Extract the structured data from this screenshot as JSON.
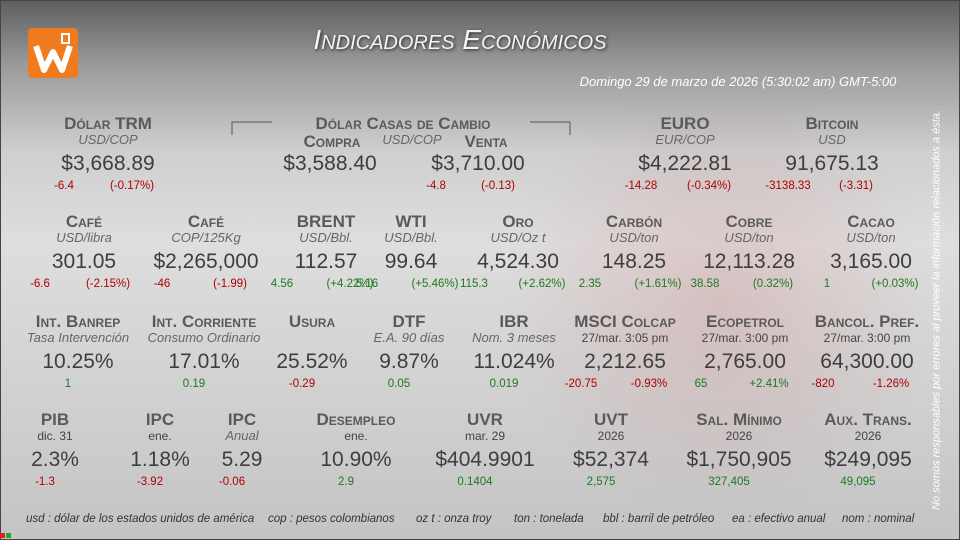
{
  "header": {
    "title": "Indicadores Económicos",
    "date": "Domingo 29 de marzo de 2026 (5:30:02 am) GMT-5:00"
  },
  "exchange": {
    "title": "Dólar Casas de Cambio",
    "buy_label": "Compra",
    "unit": "USD/COP",
    "sell_label": "Venta",
    "buy": "$3,588.40",
    "sell": "$3,710.00",
    "change": "-4.8",
    "pct": "(-0.13)"
  },
  "rows": [
    [
      {
        "name": "Dólar TRM",
        "sub": "USD/COP",
        "value": "$3,668.89",
        "change": "-6.4",
        "pct": "(-0.17%)"
      },
      {
        "name": "EURO",
        "sub": "EUR/COP",
        "value": "$4,222.81",
        "change": "-14.28",
        "pct": "(-0.34%)"
      },
      {
        "name": "Bitcoin",
        "sub": "USD",
        "value": "91,675.13",
        "change": "-3138.33",
        "pct": "(-3.31)"
      }
    ],
    [
      {
        "name": "Café",
        "sub": "USD/libra",
        "value": "301.05",
        "change": "-6.6",
        "pct": "(-2.15%)"
      },
      {
        "name": "Café",
        "sub": "COP/125Kg",
        "value": "$2,265,000",
        "change": "-46",
        "pct": "(-1.99)"
      },
      {
        "name": "BRENT",
        "sub": "USD/Bbl.",
        "value": "112.57",
        "change": "4.56",
        "pct": "(+4.22%)"
      },
      {
        "name": "WTI",
        "sub": "USD/Bbl.",
        "value": "99.64",
        "change": "5.16",
        "pct": "(+5.46%)"
      },
      {
        "name": "Oro",
        "sub": "USD/Oz t",
        "value": "4,524.30",
        "change": "115.3",
        "pct": "(+2.62%)"
      },
      {
        "name": "Carbón",
        "sub": "USD/ton",
        "value": "148.25",
        "change": "2.35",
        "pct": "(+1.61%)"
      },
      {
        "name": "Cobre",
        "sub": "USD/ton",
        "value": "12,113.28",
        "change": "38.58",
        "pct": "(0.32%)"
      },
      {
        "name": "Cacao",
        "sub": "USD/ton",
        "value": "3,165.00",
        "change": "1",
        "pct": "(+0.03%)"
      }
    ],
    [
      {
        "name": "Int. Banrep",
        "sub": "Tasa Intervención",
        "value": "10.25%",
        "change": "1"
      },
      {
        "name": "Int. Corriente",
        "sub": "Consumo Ordinario",
        "value": "17.01%",
        "change": "0.19"
      },
      {
        "name": "Usura",
        "value": "25.52%",
        "change": "-0.29"
      },
      {
        "name": "DTF",
        "sub": "E.A. 90 días",
        "value": "9.87%",
        "change": "0.05"
      },
      {
        "name": "IBR",
        "sub": "Nom. 3 meses",
        "value": "11.024%",
        "change": "0.019"
      },
      {
        "name": "MSCI Colcap",
        "date": "27/mar. 3:05 pm",
        "value": "2,212.65",
        "change": "-20.75",
        "pct": "-0.93%"
      },
      {
        "name": "Ecopetrol",
        "date": "27/mar. 3:00 pm",
        "value": "2,765.00",
        "change": "65",
        "pct": "+2.41%"
      },
      {
        "name": "Bancol. Pref.",
        "date": "27/mar. 3:00 pm",
        "value": "64,300.00",
        "change": "-820",
        "pct": "-1.26%"
      }
    ],
    [
      {
        "name": "PIB",
        "date": "dic. 31",
        "value": "2.3%",
        "change": "-1.3"
      },
      {
        "name": "IPC",
        "date": "ene.",
        "value": "1.18%",
        "change": "-3.92"
      },
      {
        "name": "IPC",
        "sub": "Anual",
        "value": "5.29",
        "change": "-0.06"
      },
      {
        "name": "Desempleo",
        "date": "ene.",
        "value": "10.90%",
        "change": "2.9"
      },
      {
        "name": "UVR",
        "date": "mar. 29",
        "value": "$404.9901",
        "change": "0.1404"
      },
      {
        "name": "UVT",
        "date": "2026",
        "value": "$52,374",
        "change": "2,575"
      },
      {
        "name": "Sal. Mínimo",
        "date": "2026",
        "value": "$1,750,905",
        "change": "327,405"
      },
      {
        "name": "Aux. Trans.",
        "date": "2026",
        "value": "$249,095",
        "change": "49,095"
      }
    ]
  ],
  "glossary": [
    "usd : dólar de los estados unidos de américa",
    "cop : pesos colombianos",
    "oz t : onza troy",
    "ton : tonelada",
    "bbl : barril de petróleo",
    "ea : efectivo anual",
    "nom : nominal"
  ],
  "disclaimer": "No somos responsables por errores al proveer la información relacionados a ésta."
}
